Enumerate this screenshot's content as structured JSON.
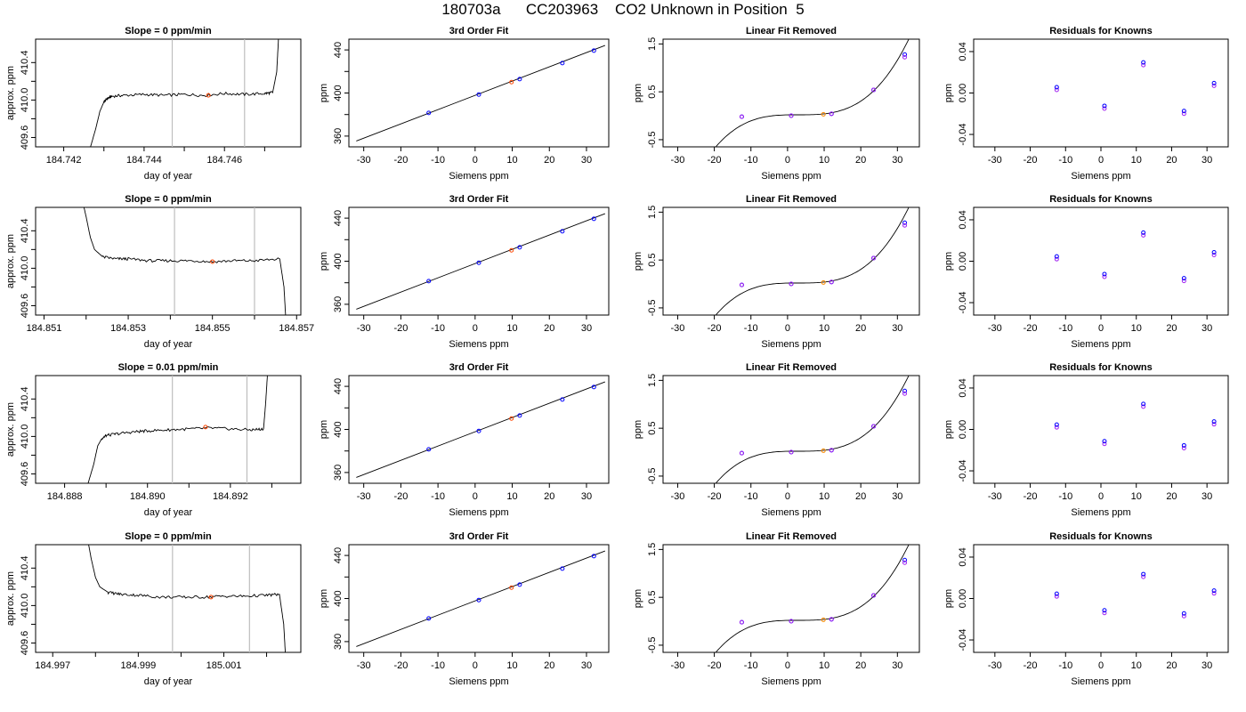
{
  "title": "180703a      CC203963    CO2 Unknown in Position  5",
  "labels": {
    "doy_xlabel": "day of year",
    "ppm_approx_ylabel": "approx. ppm",
    "siemens_xlabel": "Siemens ppm",
    "ppm_ylabel": "ppm",
    "fit_title": "3rd Order Fit",
    "linear_removed_title": "Linear Fit Removed",
    "residuals_title": "Residuals for Knowns"
  },
  "chart_data": [
    {
      "row": 1,
      "type": "line",
      "title": "Slope =  0  ppm/min",
      "xlabel": "day of year",
      "ylabel": "approx. ppm",
      "xlim": [
        184.7413,
        184.7479
      ],
      "ylim": [
        409.5,
        410.65
      ],
      "xticks": [
        "184.742",
        "184.744",
        "184.746"
      ],
      "xtick_values": [
        184.742,
        184.744,
        184.746
      ],
      "yticks": [
        "409.6",
        "410.0",
        "410.4"
      ],
      "ytick_values": [
        409.6,
        410.0,
        410.4
      ],
      "trace": [
        [
          184.7426,
          409.4
        ],
        [
          184.7428,
          409.7
        ],
        [
          184.7429,
          409.88
        ],
        [
          184.743,
          409.98
        ],
        [
          184.7431,
          410.02
        ],
        [
          184.7432,
          410.04
        ],
        [
          184.7435,
          410.05
        ],
        [
          184.744,
          410.06
        ],
        [
          184.7445,
          410.05
        ],
        [
          184.745,
          410.06
        ],
        [
          184.7455,
          410.05
        ],
        [
          184.746,
          410.07
        ],
        [
          184.7465,
          410.06
        ],
        [
          184.747,
          410.07
        ],
        [
          184.7472,
          410.08
        ],
        [
          184.7473,
          410.3
        ],
        [
          184.74735,
          410.7
        ]
      ],
      "window": [
        184.7447,
        184.7465
      ],
      "mean_point": [
        184.7456,
        410.05
      ],
      "guide_lines": [
        184.7447,
        184.7465
      ]
    },
    {
      "row": 2,
      "type": "line",
      "title": "Slope =  0  ppm/min",
      "xlabel": "day of year",
      "ylabel": "approx. ppm",
      "xlim": [
        184.8508,
        184.8571
      ],
      "ylim": [
        409.5,
        410.65
      ],
      "xticks": [
        "184.851",
        "184.853",
        "184.855",
        "184.857"
      ],
      "xtick_values": [
        184.851,
        184.853,
        184.855,
        184.857
      ],
      "yticks": [
        "409.6",
        "410.0",
        "410.4"
      ],
      "ytick_values": [
        409.6,
        410.0,
        410.4
      ],
      "trace": [
        [
          184.8519,
          410.75
        ],
        [
          184.852,
          410.55
        ],
        [
          184.8521,
          410.33
        ],
        [
          184.8522,
          410.2
        ],
        [
          184.8524,
          410.12
        ],
        [
          184.8527,
          410.1
        ],
        [
          184.853,
          410.1
        ],
        [
          184.8535,
          410.08
        ],
        [
          184.854,
          410.08
        ],
        [
          184.8545,
          410.08
        ],
        [
          184.855,
          410.07
        ],
        [
          184.8555,
          410.08
        ],
        [
          184.856,
          410.08
        ],
        [
          184.8566,
          410.1
        ],
        [
          184.8567,
          409.8
        ],
        [
          184.85675,
          409.4
        ]
      ],
      "window": [
        184.8541,
        184.856
      ],
      "mean_point": [
        184.855,
        410.07
      ],
      "guide_lines": [
        184.8541,
        184.856
      ]
    },
    {
      "row": 3,
      "type": "line",
      "title": "Slope =  0.01  ppm/min",
      "xlabel": "day of year",
      "ylabel": "approx. ppm",
      "xlim": [
        184.8873,
        184.8937
      ],
      "ylim": [
        409.5,
        410.65
      ],
      "xticks": [
        "184.888",
        "184.890",
        "184.892"
      ],
      "xtick_values": [
        184.888,
        184.89,
        184.892
      ],
      "yticks": [
        "409.6",
        "410.0",
        "410.4"
      ],
      "ytick_values": [
        409.6,
        410.0,
        410.4
      ],
      "trace": [
        [
          184.8885,
          409.4
        ],
        [
          184.8887,
          409.7
        ],
        [
          184.8888,
          409.9
        ],
        [
          184.8889,
          409.98
        ],
        [
          184.889,
          410.01
        ],
        [
          184.8893,
          410.03
        ],
        [
          184.8897,
          410.05
        ],
        [
          184.89,
          410.06
        ],
        [
          184.8905,
          410.07
        ],
        [
          184.891,
          410.08
        ],
        [
          184.8915,
          410.09
        ],
        [
          184.892,
          410.08
        ],
        [
          184.8925,
          410.07
        ],
        [
          184.8928,
          410.08
        ],
        [
          184.89285,
          410.35
        ],
        [
          184.8929,
          410.7
        ]
      ],
      "window": [
        184.8906,
        184.8924
      ],
      "mean_point": [
        184.8914,
        410.1
      ],
      "guide_lines": [
        184.8906,
        184.8924
      ]
    },
    {
      "row": 4,
      "type": "line",
      "title": "Slope =  0  ppm/min",
      "xlabel": "day of year",
      "ylabel": "approx. ppm",
      "xlim": [
        184.9966,
        185.0028
      ],
      "ylim": [
        409.5,
        410.65
      ],
      "xticks": [
        "184.997",
        "184.999",
        "185.001"
      ],
      "xtick_values": [
        184.997,
        184.999,
        185.001
      ],
      "yticks": [
        "409.6",
        "410.0",
        "410.4"
      ],
      "ytick_values": [
        409.6,
        410.0,
        410.4
      ],
      "trace": [
        [
          184.9978,
          410.75
        ],
        [
          184.9979,
          410.5
        ],
        [
          184.998,
          410.3
        ],
        [
          184.9981,
          410.2
        ],
        [
          184.9983,
          410.14
        ],
        [
          184.9986,
          410.12
        ],
        [
          184.999,
          410.11
        ],
        [
          184.9995,
          410.09
        ],
        [
          185.0,
          410.09
        ],
        [
          185.0005,
          410.09
        ],
        [
          185.001,
          410.1
        ],
        [
          185.0015,
          410.1
        ],
        [
          185.002,
          410.11
        ],
        [
          185.0023,
          410.12
        ],
        [
          185.0024,
          409.8
        ],
        [
          185.00245,
          409.4
        ]
      ],
      "window": [
        184.9998,
        185.0016
      ],
      "mean_point": [
        185.0007,
        410.09
      ],
      "guide_lines": [
        184.9998,
        185.0016
      ]
    },
    {
      "type": "scatter",
      "title": "3rd Order Fit",
      "xlabel": "Siemens ppm",
      "ylabel": "ppm",
      "xlim": [
        -34,
        36
      ],
      "ylim": [
        350,
        450
      ],
      "xticks": [
        "-30",
        "-20",
        "-10",
        "0",
        "10",
        "20",
        "30"
      ],
      "xtick_values": [
        -30,
        -20,
        -10,
        0,
        10,
        20,
        30
      ],
      "yticks": [
        "360",
        "400",
        "440"
      ],
      "ytick_values": [
        360,
        400,
        440
      ],
      "knowns_x": [
        -12.5,
        1.0,
        12.0,
        23.5,
        32.0
      ],
      "knowns_y": [
        381.5,
        398.6,
        412.9,
        427.8,
        439.4
      ],
      "unknown": [
        9.8,
        410.1
      ],
      "fit_line": [
        [
          -32,
          355.4
        ],
        [
          35,
          444.2
        ]
      ]
    },
    {
      "type": "scatter",
      "title": "Linear Fit Removed",
      "xlabel": "Siemens ppm",
      "ylabel": "ppm",
      "xlim": [
        -34,
        36
      ],
      "ylim": [
        -0.65,
        1.6
      ],
      "xticks": [
        "-30",
        "-20",
        "-10",
        "0",
        "10",
        "20",
        "30"
      ],
      "xtick_values": [
        -30,
        -20,
        -10,
        0,
        10,
        20,
        30
      ],
      "yticks": [
        "-0.5",
        "0.5",
        "1.5"
      ],
      "ytick_values": [
        -0.5,
        0.5,
        1.5
      ],
      "knowns_x": [
        -12.5,
        1.0,
        12.0,
        23.5,
        32.0
      ],
      "knowns_y": [
        -0.02,
        0.0,
        0.04,
        0.54,
        1.28
      ],
      "unknown": [
        9.8,
        0.03
      ],
      "curve": "cubic"
    },
    {
      "type": "scatter",
      "title": "Residuals for Knowns",
      "xlabel": "Siemens ppm",
      "ylabel": "ppm",
      "xlim": [
        -36,
        36
      ],
      "ylim": [
        -0.052,
        0.052
      ],
      "xticks": [
        "-30",
        "-20",
        "-10",
        "0",
        "10",
        "20",
        "30"
      ],
      "xtick_values": [
        -30,
        -20,
        -10,
        0,
        10,
        20,
        30
      ],
      "yticks": [
        "-0.04",
        "0.00",
        "0.04"
      ],
      "ytick_values": [
        -0.04,
        0.0,
        0.04
      ],
      "knowns_x": [
        -12.5,
        1.0,
        12.0,
        23.5,
        32.0
      ],
      "residuals": [
        [
          0.003,
          -0.015,
          0.027,
          -0.02,
          0.007
        ],
        [
          0.002,
          -0.015,
          0.025,
          -0.019,
          0.006
        ],
        [
          0.002,
          -0.014,
          0.022,
          -0.018,
          0.005
        ],
        [
          0.002,
          -0.014,
          0.021,
          -0.017,
          0.005
        ]
      ]
    }
  ],
  "colors": {
    "axis": "#000000",
    "trace": "#000000",
    "guide": "#bebebe",
    "known_points": "#0000ff",
    "residual_points": "#a020f0",
    "unknown_point": "#ff4500",
    "unknown_point_alt": "#ff8c00"
  }
}
